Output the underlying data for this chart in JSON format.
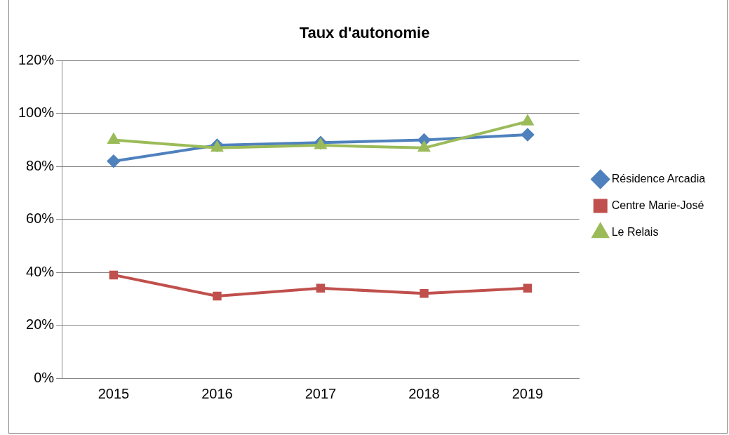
{
  "chart_data": {
    "type": "line",
    "title": "Taux d'autonomie",
    "categories": [
      "2015",
      "2016",
      "2017",
      "2018",
      "2019"
    ],
    "series": [
      {
        "name": "Résidence Arcadia",
        "color": "#4f81bd",
        "marker": "diamond",
        "values": [
          0.82,
          0.88,
          0.89,
          0.9,
          0.92
        ]
      },
      {
        "name": "Centre Marie-José",
        "color": "#c0504d",
        "marker": "square",
        "values": [
          0.39,
          0.31,
          0.34,
          0.32,
          0.34
        ]
      },
      {
        "name": "Le Relais",
        "color": "#9bbb59",
        "marker": "triangle",
        "values": [
          0.9,
          0.87,
          0.88,
          0.87,
          0.97
        ]
      }
    ],
    "ylim": [
      0,
      1.2
    ],
    "yticks": [
      {
        "value": 0,
        "label": "0%"
      },
      {
        "value": 0.2,
        "label": "20%"
      },
      {
        "value": 0.4,
        "label": "40%"
      },
      {
        "value": 0.6,
        "label": "60%"
      },
      {
        "value": 0.8,
        "label": "80%"
      },
      {
        "value": 1,
        "label": "100%"
      },
      {
        "value": 1.2,
        "label": "120%"
      }
    ],
    "grid": "y",
    "legend": "right",
    "line_style": "solid"
  }
}
